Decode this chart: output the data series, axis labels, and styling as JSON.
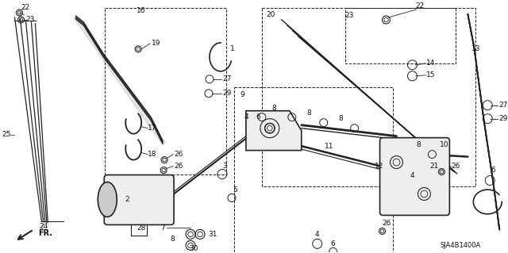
{
  "background_color": "#ffffff",
  "fig_width": 6.4,
  "fig_height": 3.19,
  "dpi": 100,
  "diagram_code": "SJA4B1400A",
  "line_color": "#222222",
  "part_num_color": "#111111",
  "gray_fill": "#cccccc",
  "dark_gray": "#888888",
  "light_gray": "#eeeeee"
}
